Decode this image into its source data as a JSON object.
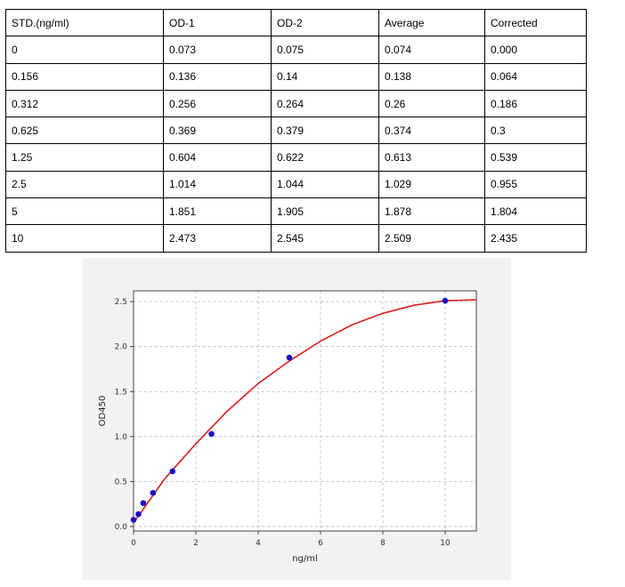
{
  "table": {
    "headers": [
      "STD.(ng/ml)",
      "OD-1",
      "OD-2",
      "Average",
      "Corrected"
    ],
    "rows": [
      [
        "0",
        "0.073",
        "0.075",
        "0.074",
        "0.000"
      ],
      [
        "0.156",
        "0.136",
        "0.14",
        "0.138",
        "0.064"
      ],
      [
        "0.312",
        "0.256",
        "0.264",
        "0.26",
        "0.186"
      ],
      [
        "0.625",
        "0.369",
        "0.379",
        "0.374",
        "0.3"
      ],
      [
        "1.25",
        "0.604",
        "0.622",
        "0.613",
        "0.539"
      ],
      [
        "2.5",
        "1.014",
        "1.044",
        "1.029",
        "0.955"
      ],
      [
        "5",
        "1.851",
        "1.905",
        "1.878",
        "1.804"
      ],
      [
        "10",
        "2.473",
        "2.545",
        "2.509",
        "2.435"
      ]
    ]
  },
  "chart_data": {
    "type": "scatter",
    "title": "",
    "xlabel": "ng/ml",
    "ylabel": "OD450",
    "xlim": [
      0,
      11
    ],
    "ylim": [
      -0.05,
      2.62
    ],
    "xticks": [
      0,
      2,
      4,
      6,
      8,
      10
    ],
    "yticks": [
      0.0,
      0.5,
      1.0,
      1.5,
      2.0,
      2.5
    ],
    "xtick_labels": [
      "0",
      "2",
      "4",
      "6",
      "8",
      "10"
    ],
    "ytick_labels": [
      "0.0",
      "0.5",
      "1.0",
      "1.5",
      "2.0",
      "2.5"
    ],
    "grid": true,
    "series": [
      {
        "type": "scatter",
        "color": "#1a10c8",
        "x": [
          0,
          0.156,
          0.312,
          0.625,
          1.25,
          2.5,
          5,
          10
        ],
        "y": [
          0.074,
          0.138,
          0.26,
          0.374,
          0.613,
          1.029,
          1.878,
          2.509
        ]
      },
      {
        "type": "line",
        "color": "#d62020",
        "x": [
          0,
          1,
          2,
          3,
          4,
          5,
          6,
          7,
          8,
          9,
          10,
          11
        ],
        "y": [
          0.04,
          0.53,
          0.92,
          1.28,
          1.59,
          1.84,
          2.06,
          2.24,
          2.37,
          2.46,
          2.51,
          2.52
        ]
      }
    ]
  }
}
